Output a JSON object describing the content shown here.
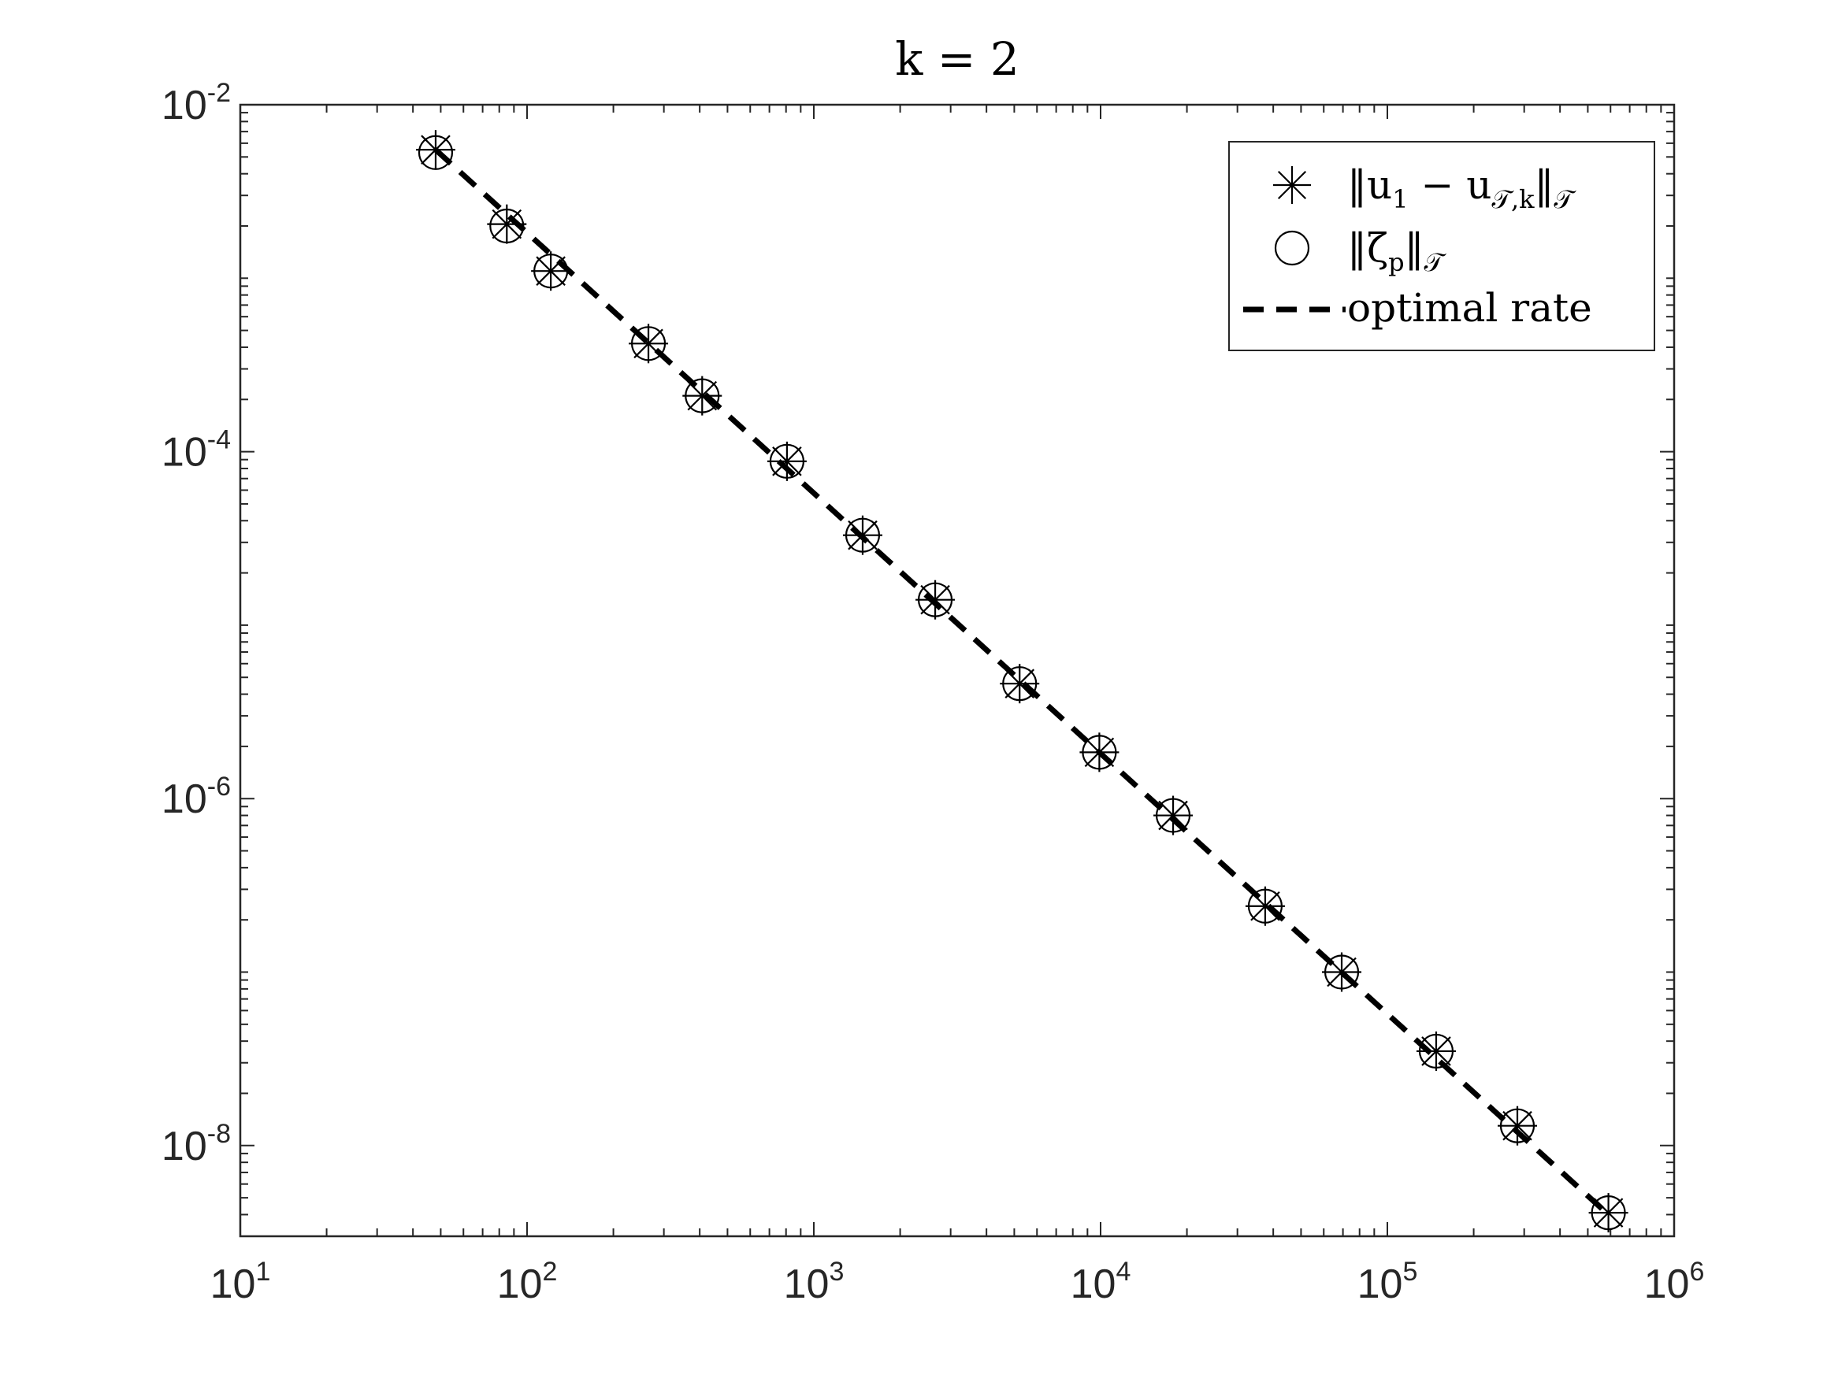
{
  "chart_data": {
    "type": "scatter",
    "title": "k = 2",
    "xlabel": "",
    "ylabel": "",
    "xscale": "log",
    "yscale": "log",
    "xlim": [
      10,
      1000000
    ],
    "ylim": [
      3e-09,
      0.01
    ],
    "grid": false,
    "legend_position": "top-right",
    "x_ticks": [
      {
        "base": "10",
        "exp": "1"
      },
      {
        "base": "10",
        "exp": "2"
      },
      {
        "base": "10",
        "exp": "3"
      },
      {
        "base": "10",
        "exp": "4"
      },
      {
        "base": "10",
        "exp": "5"
      },
      {
        "base": "10",
        "exp": "6"
      }
    ],
    "y_ticks": [
      {
        "base": "10",
        "exp": "-2"
      },
      {
        "base": "10",
        "exp": "-4"
      },
      {
        "base": "10",
        "exp": "-6"
      },
      {
        "base": "10",
        "exp": "-8"
      }
    ],
    "x": [
      48,
      85,
      121,
      265,
      408,
      806,
      1480,
      2650,
      5220,
      9900,
      17900,
      37500,
      69300,
      148000,
      284000,
      590000
    ],
    "series": [
      {
        "name": "‖u₁ − u_{T,k}‖_T",
        "legend_main": "‖u",
        "legend_sub1": "1",
        "legend_mid": " − u",
        "legend_sub2": "𝒯,k",
        "legend_end": "‖",
        "legend_sub3": "𝒯",
        "marker": "asterisk",
        "values": [
          0.0055,
          0.00205,
          0.0011,
          0.00042,
          0.00021,
          8.8e-05,
          3.3e-05,
          1.4e-05,
          4.6e-06,
          1.85e-06,
          8e-07,
          2.4e-07,
          1e-07,
          3.5e-08,
          1.3e-08,
          4.1e-09
        ]
      },
      {
        "name": "‖ζ_p‖_T",
        "legend_main": "‖ζ",
        "legend_sub1": "p",
        "legend_end": "‖",
        "legend_sub3": "𝒯",
        "marker": "circle",
        "values": [
          0.0053,
          0.002,
          0.0011,
          0.00042,
          0.00021,
          8.8e-05,
          3.3e-05,
          1.4e-05,
          4.6e-06,
          1.85e-06,
          8e-07,
          2.4e-07,
          1e-07,
          3.5e-08,
          1.3e-08,
          4.1e-09
        ]
      },
      {
        "name": "optimal rate",
        "style": "dashed",
        "x": [
          48,
          590000
        ],
        "values": [
          0.0055,
          4e-09
        ]
      }
    ],
    "colors": {
      "marker": "#000000",
      "axis": "#262626",
      "line": "#000000"
    }
  }
}
